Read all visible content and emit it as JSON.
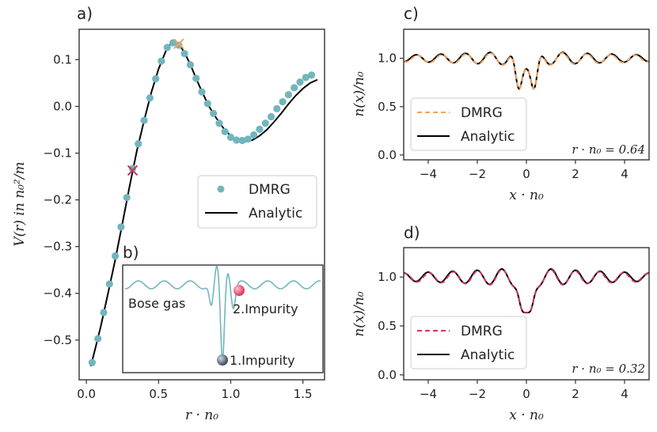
{
  "panels": [
    {
      "label": "a)",
      "type": "scatter+line",
      "xlabel": "r · n₀",
      "ylabel": "V(r) in n₀²/m",
      "xlim": [
        -0.05,
        1.65
      ],
      "ylim": [
        -0.585,
        0.165
      ],
      "xticks": [
        0.0,
        0.5,
        1.0,
        1.5
      ],
      "xtick_labels": [
        "0.0",
        "0.5",
        "1.0",
        "1.5"
      ],
      "yticks": [
        -0.5,
        -0.4,
        -0.3,
        -0.2,
        -0.1,
        0.0,
        0.1
      ],
      "ytick_labels": [
        "−0.5",
        "−0.4",
        "−0.3",
        "−0.2",
        "−0.1",
        "0.0",
        "0.1"
      ],
      "legend": [
        {
          "label": "DMRG",
          "marker": "dot",
          "color": "#72b5bd"
        },
        {
          "label": "Analytic",
          "marker": "line",
          "color": "#000000"
        }
      ],
      "legend_position": "center-right",
      "series": [
        {
          "name": "DMRG",
          "kind": "markers",
          "color": "#72b5bd",
          "x": [
            0.04,
            0.08,
            0.12,
            0.16,
            0.2,
            0.24,
            0.28,
            0.32,
            0.36,
            0.4,
            0.44,
            0.48,
            0.52,
            0.56,
            0.6,
            0.64,
            0.68,
            0.72,
            0.76,
            0.8,
            0.84,
            0.88,
            0.92,
            0.96,
            1.0,
            1.04,
            1.08,
            1.12,
            1.16,
            1.2,
            1.24,
            1.28,
            1.32,
            1.36,
            1.4,
            1.44,
            1.48,
            1.52,
            1.56
          ],
          "y": [
            -0.548,
            -0.497,
            -0.441,
            -0.38,
            -0.32,
            -0.258,
            -0.195,
            -0.133,
            -0.08,
            -0.03,
            0.018,
            0.059,
            0.097,
            0.126,
            0.136,
            0.131,
            0.113,
            0.089,
            0.06,
            0.031,
            0.006,
            -0.015,
            -0.036,
            -0.054,
            -0.066,
            -0.072,
            -0.073,
            -0.07,
            -0.061,
            -0.049,
            -0.036,
            -0.022,
            -0.005,
            0.01,
            0.025,
            0.04,
            0.052,
            0.062,
            0.067
          ]
        },
        {
          "name": "Analytic",
          "kind": "line",
          "color": "#000000",
          "x": [
            0.03,
            0.06,
            0.1,
            0.15,
            0.2,
            0.25,
            0.3,
            0.35,
            0.4,
            0.45,
            0.5,
            0.55,
            0.58,
            0.61,
            0.64,
            0.68,
            0.72,
            0.76,
            0.8,
            0.85,
            0.9,
            0.95,
            1.0,
            1.05,
            1.1,
            1.15,
            1.2,
            1.25,
            1.3,
            1.35,
            1.4,
            1.45,
            1.5,
            1.55,
            1.6
          ],
          "y": [
            -0.556,
            -0.52,
            -0.47,
            -0.4,
            -0.328,
            -0.25,
            -0.17,
            -0.095,
            -0.03,
            0.03,
            0.08,
            0.118,
            0.132,
            0.138,
            0.134,
            0.115,
            0.09,
            0.06,
            0.032,
            0.0,
            -0.025,
            -0.047,
            -0.063,
            -0.072,
            -0.075,
            -0.072,
            -0.063,
            -0.05,
            -0.033,
            -0.015,
            0.005,
            0.023,
            0.038,
            0.05,
            0.057
          ]
        }
      ],
      "markers_x": [
        {
          "x": 0.32,
          "y": -0.137,
          "color": "#c93662"
        },
        {
          "x": 0.64,
          "y": 0.134,
          "color": "#f4a15d"
        }
      ]
    },
    {
      "label": "c)",
      "type": "line",
      "xlabel": "x · n₀",
      "ylabel": "n(x)/n₀",
      "xlim": [
        -5,
        5
      ],
      "ylim": [
        -0.05,
        1.3
      ],
      "xticks": [
        -4,
        -2,
        0,
        2,
        4
      ],
      "xtick_labels": [
        "−4",
        "−2",
        "0",
        "2",
        "4"
      ],
      "yticks": [
        0.0,
        0.5,
        1.0
      ],
      "ytick_labels": [
        "0.0",
        "0.5",
        "1.0"
      ],
      "annotation": "r · n₀ = 0.64",
      "sep": 0.64,
      "dmrg_color": "#f4a15d",
      "legend": [
        {
          "label": "DMRG",
          "style": "dashed",
          "color": "#f4a15d"
        },
        {
          "label": "Analytic",
          "style": "solid",
          "color": "#000000"
        }
      ],
      "legend_position": "lower-left"
    },
    {
      "label": "d)",
      "type": "line",
      "xlabel": "x · n₀",
      "ylabel": "n(x)/n₀",
      "xlim": [
        -5,
        5
      ],
      "ylim": [
        -0.05,
        1.3
      ],
      "xticks": [
        -4,
        -2,
        0,
        2,
        4
      ],
      "xtick_labels": [
        "−4",
        "−2",
        "0",
        "2",
        "4"
      ],
      "yticks": [
        0.0,
        0.5,
        1.0
      ],
      "ytick_labels": [
        "0.0",
        "0.5",
        "1.0"
      ],
      "annotation": "r · n₀ = 0.32",
      "sep": 0.32,
      "dmrg_color": "#c93662",
      "legend": [
        {
          "label": "DMRG",
          "style": "dashed",
          "color": "#c93662"
        },
        {
          "label": "Analytic",
          "style": "solid",
          "color": "#000000"
        }
      ],
      "legend_position": "lower-left"
    }
  ],
  "inset": {
    "label": "b)",
    "bose_gas_label": "Bose gas",
    "impurity1_label": "1.Impurity",
    "impurity2_label": "2.Impurity",
    "wave_color": "#72b5bd",
    "impurity1_color": "#2f3f55",
    "impurity2_color": "#e0264f"
  }
}
